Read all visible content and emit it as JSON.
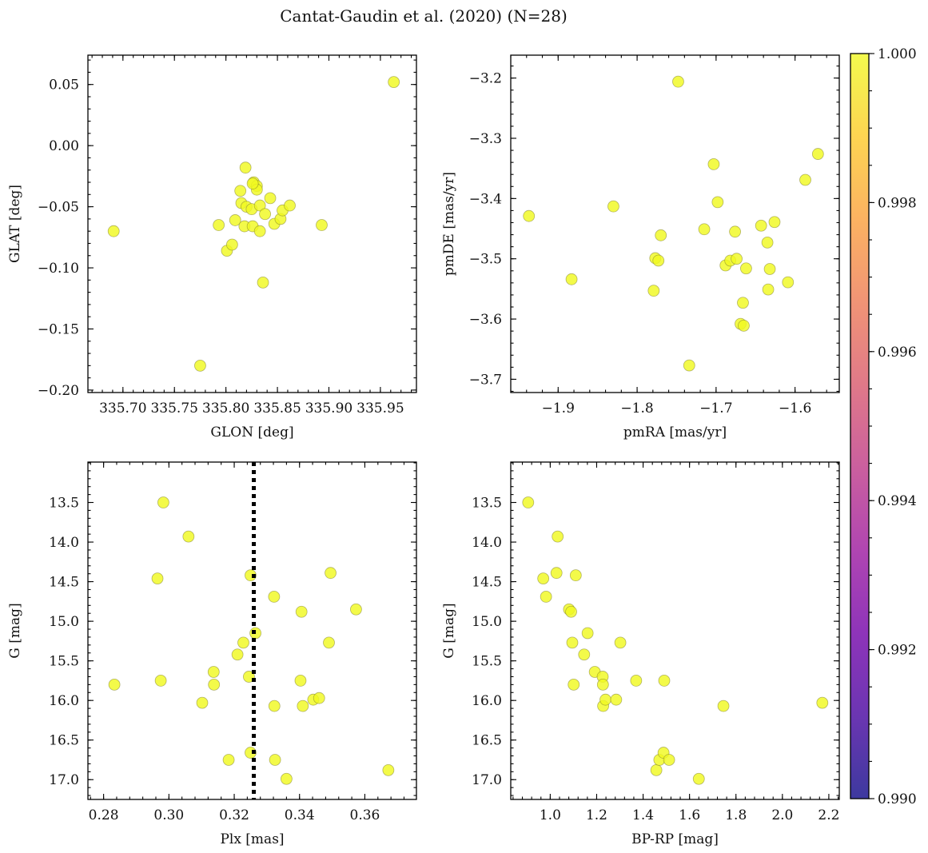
{
  "figure": {
    "title": "Cantat-Gaudin et al. (2020) (N=28)"
  },
  "colormap": {
    "name": "plasma",
    "stops": [
      "#0d0887",
      "#46039f",
      "#7201a8",
      "#9c179e",
      "#bd3786",
      "#d8576b",
      "#ed7953",
      "#fb9f3a",
      "#fdca26",
      "#f0f921"
    ],
    "alpha": 0.8,
    "ticks": [
      {
        "value": 0.99,
        "label": "0.990"
      },
      {
        "value": 0.992,
        "label": "0.992"
      },
      {
        "value": 0.994,
        "label": "0.994"
      },
      {
        "value": 0.996,
        "label": "0.996"
      },
      {
        "value": 0.998,
        "label": "0.998"
      },
      {
        "value": 1.0,
        "label": "1.000"
      }
    ],
    "range": [
      0.99,
      1.0
    ],
    "point_color": "#f0f921"
  },
  "chart_data": [
    {
      "id": "glon-glat",
      "type": "scatter",
      "xlabel": "GLON [deg]",
      "ylabel": "GLAT [deg]",
      "xlim": [
        335.666,
        335.985
      ],
      "ylim": [
        -0.202,
        0.074
      ],
      "yreverse": false,
      "xticks": [
        {
          "value": 335.7,
          "label": "335.70"
        },
        {
          "value": 335.75,
          "label": "335.75"
        },
        {
          "value": 335.8,
          "label": "335.80"
        },
        {
          "value": 335.85,
          "label": "335.85"
        },
        {
          "value": 335.9,
          "label": "335.90"
        },
        {
          "value": 335.95,
          "label": "335.95"
        }
      ],
      "yticks": [
        {
          "value": 0.05,
          "label": "0.05"
        },
        {
          "value": 0.0,
          "label": "0.00"
        },
        {
          "value": -0.05,
          "label": "−0.05"
        },
        {
          "value": -0.1,
          "label": "−0.10"
        },
        {
          "value": -0.15,
          "label": "−0.15"
        },
        {
          "value": -0.2,
          "label": "−0.20"
        }
      ],
      "x_minor_step": 0.01,
      "y_minor_step": 0.01,
      "points": [
        [
          335.691,
          -0.07
        ],
        [
          335.775,
          -0.18
        ],
        [
          335.793,
          -0.065
        ],
        [
          335.801,
          -0.086
        ],
        [
          335.806,
          -0.081
        ],
        [
          335.809,
          -0.061
        ],
        [
          335.814,
          -0.037
        ],
        [
          335.815,
          -0.047
        ],
        [
          335.818,
          -0.066
        ],
        [
          335.819,
          -0.018
        ],
        [
          335.82,
          -0.05
        ],
        [
          335.825,
          -0.052
        ],
        [
          335.826,
          -0.066
        ],
        [
          335.827,
          -0.03
        ],
        [
          335.83,
          -0.033
        ],
        [
          335.83,
          -0.036
        ],
        [
          335.833,
          -0.049
        ],
        [
          335.833,
          -0.07
        ],
        [
          335.836,
          -0.112
        ],
        [
          335.838,
          -0.056
        ],
        [
          335.843,
          -0.043
        ],
        [
          335.847,
          -0.064
        ],
        [
          335.853,
          -0.06
        ],
        [
          335.855,
          -0.053
        ],
        [
          335.862,
          -0.049
        ],
        [
          335.893,
          -0.065
        ],
        [
          335.963,
          0.052
        ],
        [
          335.826,
          -0.031
        ]
      ]
    },
    {
      "id": "pmra-pmde",
      "type": "scatter",
      "xlabel": "pmRA [mas/yr]",
      "ylabel": "pmDE [mas/yr]",
      "xlim": [
        -1.96,
        -1.544
      ],
      "ylim": [
        -3.722,
        -3.162
      ],
      "yreverse": false,
      "xticks": [
        {
          "value": -1.9,
          "label": "−1.9"
        },
        {
          "value": -1.8,
          "label": "−1.8"
        },
        {
          "value": -1.7,
          "label": "−1.7"
        },
        {
          "value": -1.6,
          "label": "−1.6"
        }
      ],
      "yticks": [
        {
          "value": -3.2,
          "label": "−3.2"
        },
        {
          "value": -3.3,
          "label": "−3.3"
        },
        {
          "value": -3.4,
          "label": "−3.4"
        },
        {
          "value": -3.5,
          "label": "−3.5"
        },
        {
          "value": -3.6,
          "label": "−3.6"
        },
        {
          "value": -3.7,
          "label": "−3.7"
        }
      ],
      "x_minor_step": 0.02,
      "y_minor_step": 0.02,
      "points": [
        [
          -1.937,
          -3.429
        ],
        [
          -1.883,
          -3.534
        ],
        [
          -1.83,
          -3.413
        ],
        [
          -1.777,
          -3.499
        ],
        [
          -1.779,
          -3.553
        ],
        [
          -1.773,
          -3.503
        ],
        [
          -1.77,
          -3.461
        ],
        [
          -1.748,
          -3.206
        ],
        [
          -1.734,
          -3.677
        ],
        [
          -1.715,
          -3.451
        ],
        [
          -1.703,
          -3.343
        ],
        [
          -1.698,
          -3.406
        ],
        [
          -1.688,
          -3.511
        ],
        [
          -1.682,
          -3.503
        ],
        [
          -1.676,
          -3.455
        ],
        [
          -1.674,
          -3.5
        ],
        [
          -1.669,
          -3.608
        ],
        [
          -1.666,
          -3.573
        ],
        [
          -1.665,
          -3.611
        ],
        [
          -1.662,
          -3.516
        ],
        [
          -1.643,
          -3.445
        ],
        [
          -1.635,
          -3.473
        ],
        [
          -1.634,
          -3.551
        ],
        [
          -1.632,
          -3.517
        ],
        [
          -1.626,
          -3.439
        ],
        [
          -1.609,
          -3.539
        ],
        [
          -1.587,
          -3.369
        ],
        [
          -1.571,
          -3.326
        ]
      ]
    },
    {
      "id": "plx-g",
      "type": "scatter",
      "xlabel": "Plx [mas]",
      "ylabel": "G [mag]",
      "xlim": [
        0.2752,
        0.3758
      ],
      "ylim": [
        12.99,
        17.25
      ],
      "yreverse": true,
      "xticks": [
        {
          "value": 0.28,
          "label": "0.28"
        },
        {
          "value": 0.3,
          "label": "0.30"
        },
        {
          "value": 0.32,
          "label": "0.32"
        },
        {
          "value": 0.34,
          "label": "0.34"
        },
        {
          "value": 0.36,
          "label": "0.36"
        }
      ],
      "yticks": [
        {
          "value": 13.5,
          "label": "13.5"
        },
        {
          "value": 14.0,
          "label": "14.0"
        },
        {
          "value": 14.5,
          "label": "14.5"
        },
        {
          "value": 15.0,
          "label": "15.0"
        },
        {
          "value": 15.5,
          "label": "15.5"
        },
        {
          "value": 16.0,
          "label": "16.0"
        },
        {
          "value": 16.5,
          "label": "16.5"
        },
        {
          "value": 17.0,
          "label": "17.0"
        }
      ],
      "x_minor_step": 0.004,
      "y_minor_step": 0.1,
      "vline": {
        "x": 0.326,
        "style": "dotted"
      },
      "points": [
        [
          0.2833,
          15.8
        ],
        [
          0.2965,
          14.46
        ],
        [
          0.2975,
          15.75
        ],
        [
          0.2983,
          13.5
        ],
        [
          0.306,
          13.93
        ],
        [
          0.3102,
          16.03
        ],
        [
          0.3137,
          15.64
        ],
        [
          0.3138,
          15.8
        ],
        [
          0.3183,
          16.75
        ],
        [
          0.321,
          15.42
        ],
        [
          0.3228,
          15.27
        ],
        [
          0.3245,
          15.7
        ],
        [
          0.325,
          14.42
        ],
        [
          0.325,
          16.66
        ],
        [
          0.3265,
          15.15
        ],
        [
          0.3322,
          14.69
        ],
        [
          0.3323,
          16.07
        ],
        [
          0.3325,
          16.75
        ],
        [
          0.336,
          16.99
        ],
        [
          0.3403,
          15.75
        ],
        [
          0.3406,
          14.88
        ],
        [
          0.341,
          16.07
        ],
        [
          0.3442,
          15.99
        ],
        [
          0.346,
          15.97
        ],
        [
          0.349,
          15.27
        ],
        [
          0.3495,
          14.39
        ],
        [
          0.3573,
          14.85
        ],
        [
          0.3672,
          16.88
        ]
      ]
    },
    {
      "id": "bprp-g",
      "type": "scatter",
      "xlabel": "BP-RP [mag]",
      "ylabel": "G [mag]",
      "xlim": [
        0.83,
        2.245
      ],
      "ylim": [
        12.99,
        17.25
      ],
      "yreverse": true,
      "xticks": [
        {
          "value": 1.0,
          "label": "1.0"
        },
        {
          "value": 1.2,
          "label": "1.2"
        },
        {
          "value": 1.4,
          "label": "1.4"
        },
        {
          "value": 1.6,
          "label": "1.6"
        },
        {
          "value": 1.8,
          "label": "1.8"
        },
        {
          "value": 2.0,
          "label": "2.0"
        },
        {
          "value": 2.2,
          "label": "2.2"
        }
      ],
      "yticks": [
        {
          "value": 13.5,
          "label": "13.5"
        },
        {
          "value": 14.0,
          "label": "14.0"
        },
        {
          "value": 14.5,
          "label": "14.5"
        },
        {
          "value": 15.0,
          "label": "15.0"
        },
        {
          "value": 15.5,
          "label": "15.5"
        },
        {
          "value": 16.0,
          "label": "16.0"
        },
        {
          "value": 16.5,
          "label": "16.5"
        },
        {
          "value": 17.0,
          "label": "17.0"
        }
      ],
      "x_minor_step": 0.04,
      "y_minor_step": 0.1,
      "points": [
        [
          0.905,
          13.5
        ],
        [
          0.97,
          14.46
        ],
        [
          0.982,
          14.69
        ],
        [
          1.027,
          14.39
        ],
        [
          1.032,
          13.93
        ],
        [
          1.081,
          14.85
        ],
        [
          1.09,
          14.88
        ],
        [
          1.095,
          15.27
        ],
        [
          1.101,
          15.8
        ],
        [
          1.11,
          14.42
        ],
        [
          1.146,
          15.42
        ],
        [
          1.161,
          15.15
        ],
        [
          1.192,
          15.64
        ],
        [
          1.226,
          15.7
        ],
        [
          1.227,
          15.8
        ],
        [
          1.228,
          16.07
        ],
        [
          1.238,
          15.99
        ],
        [
          1.284,
          15.99
        ],
        [
          1.302,
          15.27
        ],
        [
          1.37,
          15.75
        ],
        [
          1.457,
          16.88
        ],
        [
          1.47,
          16.75
        ],
        [
          1.488,
          16.66
        ],
        [
          1.491,
          15.75
        ],
        [
          1.512,
          16.75
        ],
        [
          1.64,
          16.99
        ],
        [
          1.746,
          16.07
        ],
        [
          2.172,
          16.03
        ]
      ]
    }
  ]
}
